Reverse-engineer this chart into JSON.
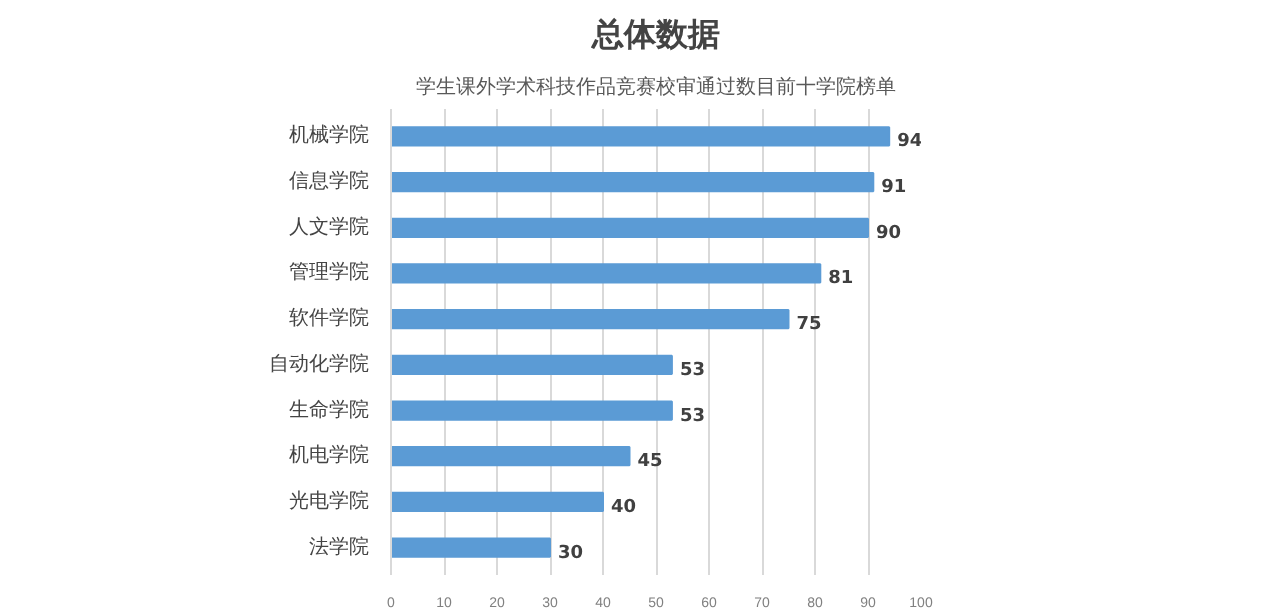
{
  "chart_data": {
    "type": "bar",
    "orientation": "horizontal",
    "title": "总体数据",
    "subtitle": "学生课外学术科技作品竞赛校审通过数目前十学院榜单",
    "categories": [
      "机械学院",
      "信息学院",
      "人文学院",
      "管理学院",
      "软件学院",
      "自动化学院",
      "生命学院",
      "机电学院",
      "光电学院",
      "法学院"
    ],
    "values": [
      94,
      91,
      90,
      81,
      75,
      53,
      53,
      45,
      40,
      30
    ],
    "color": "#5b9bd5",
    "xlim": [
      0,
      100
    ],
    "xticks": [
      0,
      10,
      20,
      30,
      40,
      50,
      60,
      70,
      80,
      90,
      100
    ],
    "grid": "x",
    "data_labels": true
  }
}
